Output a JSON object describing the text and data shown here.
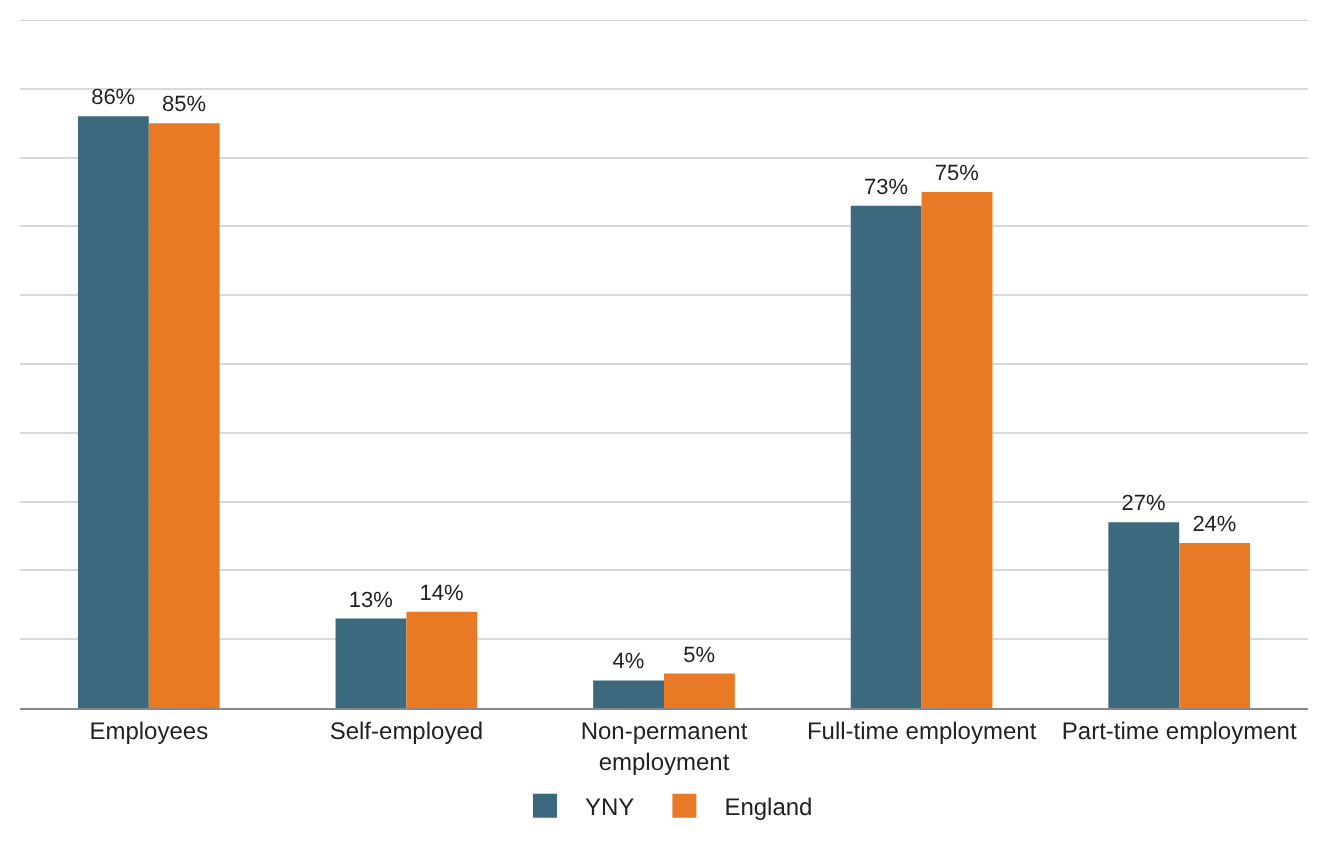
{
  "chart_data": {
    "type": "bar",
    "categories": [
      "Employees",
      "Self-employed",
      "Non-permanent employment",
      "Full-time employment",
      "Part-time employment"
    ],
    "series": [
      {
        "name": "YNY",
        "color": "#3d697e",
        "values": [
          86,
          13,
          4,
          73,
          27
        ],
        "value_labels": [
          "86%",
          "13%",
          "4%",
          "73%",
          "27%"
        ]
      },
      {
        "name": "England",
        "color": "#e97a25",
        "values": [
          85,
          14,
          5,
          75,
          24
        ],
        "value_labels": [
          "85%",
          "14%",
          "5%",
          "75%",
          "24%"
        ]
      }
    ],
    "ylim": [
      0,
      100
    ],
    "yticks": [
      {
        "value": 0,
        "label": null
      },
      {
        "value": 10,
        "label": null
      },
      {
        "value": 20,
        "label": null
      },
      {
        "value": 30,
        "label": null
      },
      {
        "value": 40,
        "label": null
      },
      {
        "value": 50,
        "label": null
      },
      {
        "value": 60,
        "label": null
      },
      {
        "value": 70,
        "label": null
      },
      {
        "value": 80,
        "label": null
      },
      {
        "value": 90,
        "label": null
      },
      {
        "value": 100,
        "label": null
      }
    ],
    "grid": "y",
    "legend": "bottom",
    "tick_labels": "x"
  }
}
